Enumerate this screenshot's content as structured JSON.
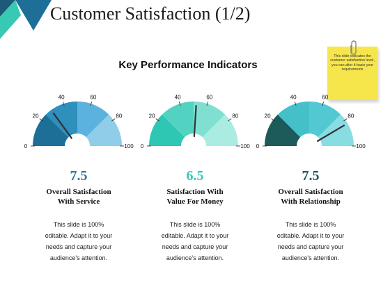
{
  "page": {
    "title": "Customer Satisfaction (1/2)",
    "subtitle": "Key Performance Indicators"
  },
  "note": {
    "text": "This slide indicates the customer satisfaction level, you can alter it basis your requirements"
  },
  "gauge_ticks": [
    "0",
    "20",
    "40",
    "60",
    "80",
    "100"
  ],
  "kpis": [
    {
      "score": "7.5",
      "score_color": "#2d7a9e",
      "label_line1": "Overall Satisfaction",
      "label_line2": "With Service",
      "desc_lines": [
        "This slide is 100%",
        "editable. Adapt it to your",
        "needs and capture your",
        "audience's attention."
      ],
      "value": 7.5,
      "needle_percent": 30,
      "segment_colors": [
        "#1d6f98",
        "#2f8fbd",
        "#5cb2de",
        "#8fcde9"
      ]
    },
    {
      "score": "6.5",
      "score_color": "#37c9b3",
      "label_line1": "Satisfaction With",
      "label_line2": "Value For Money",
      "desc_lines": [
        "This slide is 100%",
        "editable. Adapt it to your",
        "needs and capture your",
        "audience's attention."
      ],
      "value": 6.5,
      "needle_percent": 52,
      "segment_colors": [
        "#2ec7b4",
        "#52d3c2",
        "#7fe0d2",
        "#aaebe2"
      ]
    },
    {
      "score": "7.5",
      "score_color": "#1d5a5a",
      "label_line1": "Overall Satisfaction",
      "label_line2": "With Relationship",
      "desc_lines": [
        "This slide is 100%",
        "editable. Adapt it to your",
        "needs and capture your",
        "audience's attention."
      ],
      "value": 7.5,
      "needle_percent": 83,
      "segment_colors": [
        "#1d5a5a",
        "#45c0c9",
        "#52c8d2",
        "#88dde2"
      ]
    }
  ]
}
